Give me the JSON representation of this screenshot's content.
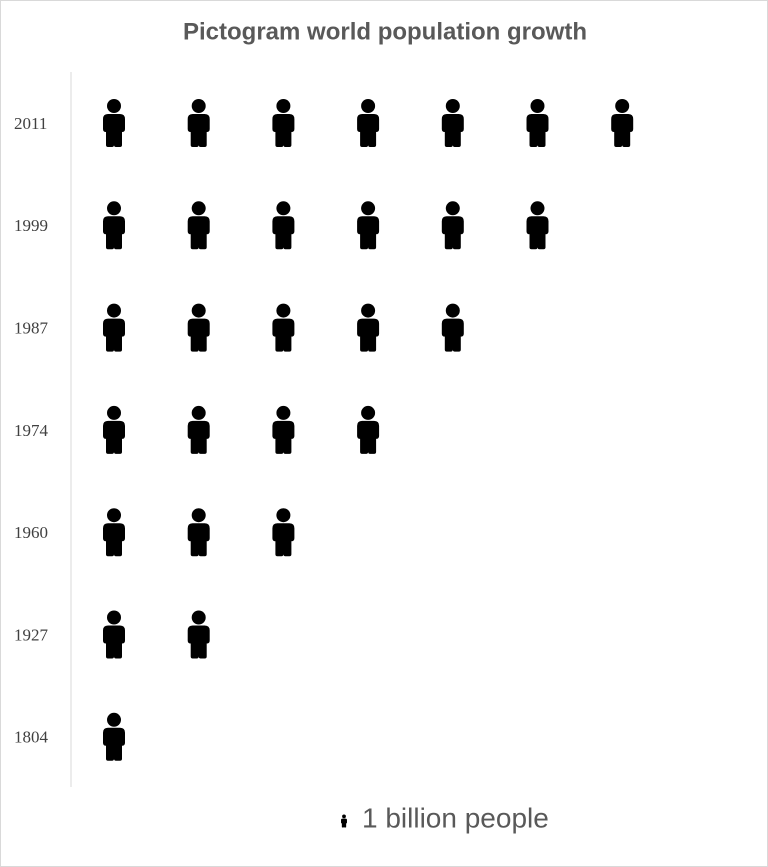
{
  "chart_data": {
    "type": "pictogram",
    "title": "Pictogram world population growth",
    "categories": [
      "2011",
      "1999",
      "1987",
      "1974",
      "1960",
      "1927",
      "1804"
    ],
    "values": [
      7,
      6,
      5,
      4,
      3,
      2,
      1
    ],
    "color": "#000000",
    "legend": "1 billion people"
  }
}
